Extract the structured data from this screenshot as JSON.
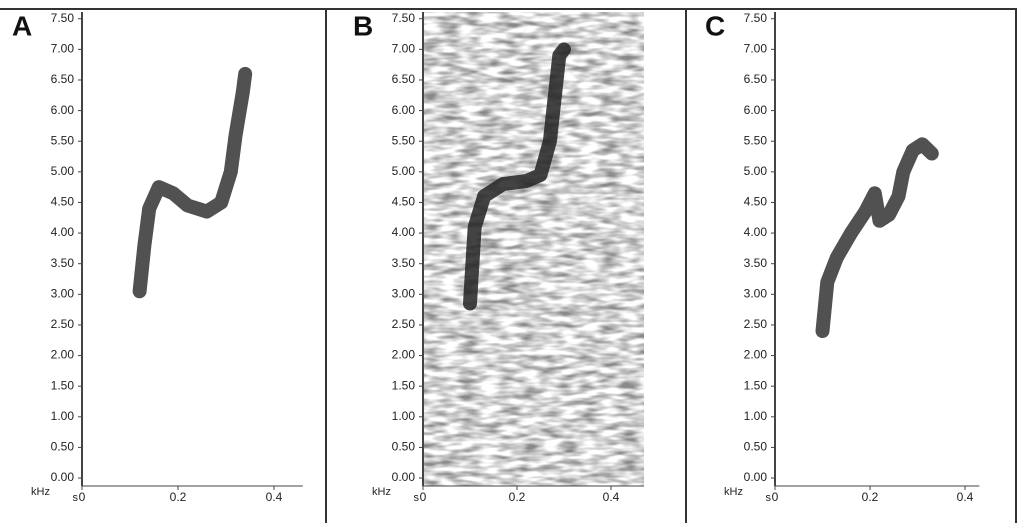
{
  "chart_data": [
    {
      "type": "spectrogram",
      "label": "A",
      "x_label": "s",
      "y_label": "kHz",
      "color": "#333333",
      "x": [
        0.12,
        0.13,
        0.14,
        0.16,
        0.19,
        0.22,
        0.26,
        0.29,
        0.31,
        0.32,
        0.335,
        0.34
      ],
      "values": [
        3.05,
        3.8,
        4.4,
        4.75,
        4.65,
        4.45,
        4.35,
        4.5,
        5.0,
        5.6,
        6.3,
        6.6
      ],
      "xlim": [
        0,
        0.46
      ],
      "ylim": [
        -0.13,
        7.61
      ],
      "xticks": [
        {
          "value": 0,
          "label": "0"
        },
        0.2,
        0.4
      ],
      "yticks": [
        {
          "value": 0,
          "label": "0.00"
        },
        {
          "value": 0.5,
          "label": "0.50"
        },
        {
          "value": 1,
          "label": "1.00"
        },
        {
          "value": 1.5,
          "label": "1.50"
        },
        {
          "value": 2,
          "label": "2.00"
        },
        {
          "value": 2.5,
          "label": "2.50"
        },
        {
          "value": 3,
          "label": "3.00"
        },
        {
          "value": 3.5,
          "label": "3.50"
        },
        {
          "value": 4,
          "label": "4.00"
        },
        {
          "value": 4.5,
          "label": "4.50"
        },
        {
          "value": 5,
          "label": "5.00"
        },
        {
          "value": 5.5,
          "label": "5.50"
        },
        {
          "value": 6,
          "label": "6.00"
        },
        {
          "value": 6.5,
          "label": "6.50"
        },
        {
          "value": 7,
          "label": "7.00"
        },
        {
          "value": 7.5,
          "label": "7.50"
        }
      ],
      "noise": false
    },
    {
      "type": "spectrogram",
      "label": "B",
      "x_label": "s",
      "y_label": "kHz",
      "color": "#222222",
      "x": [
        0.1,
        0.105,
        0.11,
        0.13,
        0.17,
        0.22,
        0.25,
        0.27,
        0.28,
        0.29,
        0.3
      ],
      "values": [
        2.85,
        3.5,
        4.1,
        4.6,
        4.8,
        4.85,
        4.95,
        5.5,
        6.2,
        6.9,
        7.0
      ],
      "xlim": [
        0,
        0.47
      ],
      "ylim": [
        -0.13,
        7.61
      ],
      "xticks": [
        {
          "value": 0,
          "label": "0"
        },
        0.2,
        0.4
      ],
      "yticks": [
        {
          "value": 0,
          "label": "0.00"
        },
        {
          "value": 0.5,
          "label": "0.50"
        },
        {
          "value": 1,
          "label": "1.00"
        },
        {
          "value": 1.5,
          "label": "1.50"
        },
        {
          "value": 2,
          "label": "2.00"
        },
        {
          "value": 2.5,
          "label": "2.50"
        },
        {
          "value": 3,
          "label": "3.00"
        },
        {
          "value": 3.5,
          "label": "3.50"
        },
        {
          "value": 4,
          "label": "4.00"
        },
        {
          "value": 4.5,
          "label": "4.50"
        },
        {
          "value": 5,
          "label": "5.00"
        },
        {
          "value": 5.5,
          "label": "5.50"
        },
        {
          "value": 6,
          "label": "6.00"
        },
        {
          "value": 6.5,
          "label": "6.50"
        },
        {
          "value": 7,
          "label": "7.00"
        },
        {
          "value": 7.5,
          "label": "7.50"
        }
      ],
      "noise": true
    },
    {
      "type": "spectrogram",
      "label": "C",
      "x_label": "s",
      "y_label": "kHz",
      "color": "#333333",
      "x": [
        0.1,
        0.11,
        0.13,
        0.16,
        0.19,
        0.21,
        0.22,
        0.24,
        0.26,
        0.27,
        0.29,
        0.31,
        0.33
      ],
      "values": [
        2.4,
        3.2,
        3.6,
        4.0,
        4.35,
        4.65,
        4.2,
        4.3,
        4.6,
        5.0,
        5.35,
        5.45,
        5.3
      ],
      "xlim": [
        0,
        0.43
      ],
      "ylim": [
        -0.13,
        7.61
      ],
      "xticks": [
        {
          "value": 0,
          "label": "0"
        },
        0.2,
        0.4
      ],
      "yticks": [
        {
          "value": 0,
          "label": "0.00"
        },
        {
          "value": 0.5,
          "label": "0.50"
        },
        {
          "value": 1,
          "label": "1.00"
        },
        {
          "value": 1.5,
          "label": "1.50"
        },
        {
          "value": 2,
          "label": "2.00"
        },
        {
          "value": 2.5,
          "label": "2.50"
        },
        {
          "value": 3,
          "label": "3.00"
        },
        {
          "value": 3.5,
          "label": "3.50"
        },
        {
          "value": 4,
          "label": "4.00"
        },
        {
          "value": 4.5,
          "label": "4.50"
        },
        {
          "value": 5,
          "label": "5.00"
        },
        {
          "value": 5.5,
          "label": "5.50"
        },
        {
          "value": 6,
          "label": "6.00"
        },
        {
          "value": 6.5,
          "label": "6.50"
        },
        {
          "value": 7,
          "label": "7.00"
        },
        {
          "value": 7.5,
          "label": "7.50"
        }
      ],
      "noise": false
    }
  ]
}
